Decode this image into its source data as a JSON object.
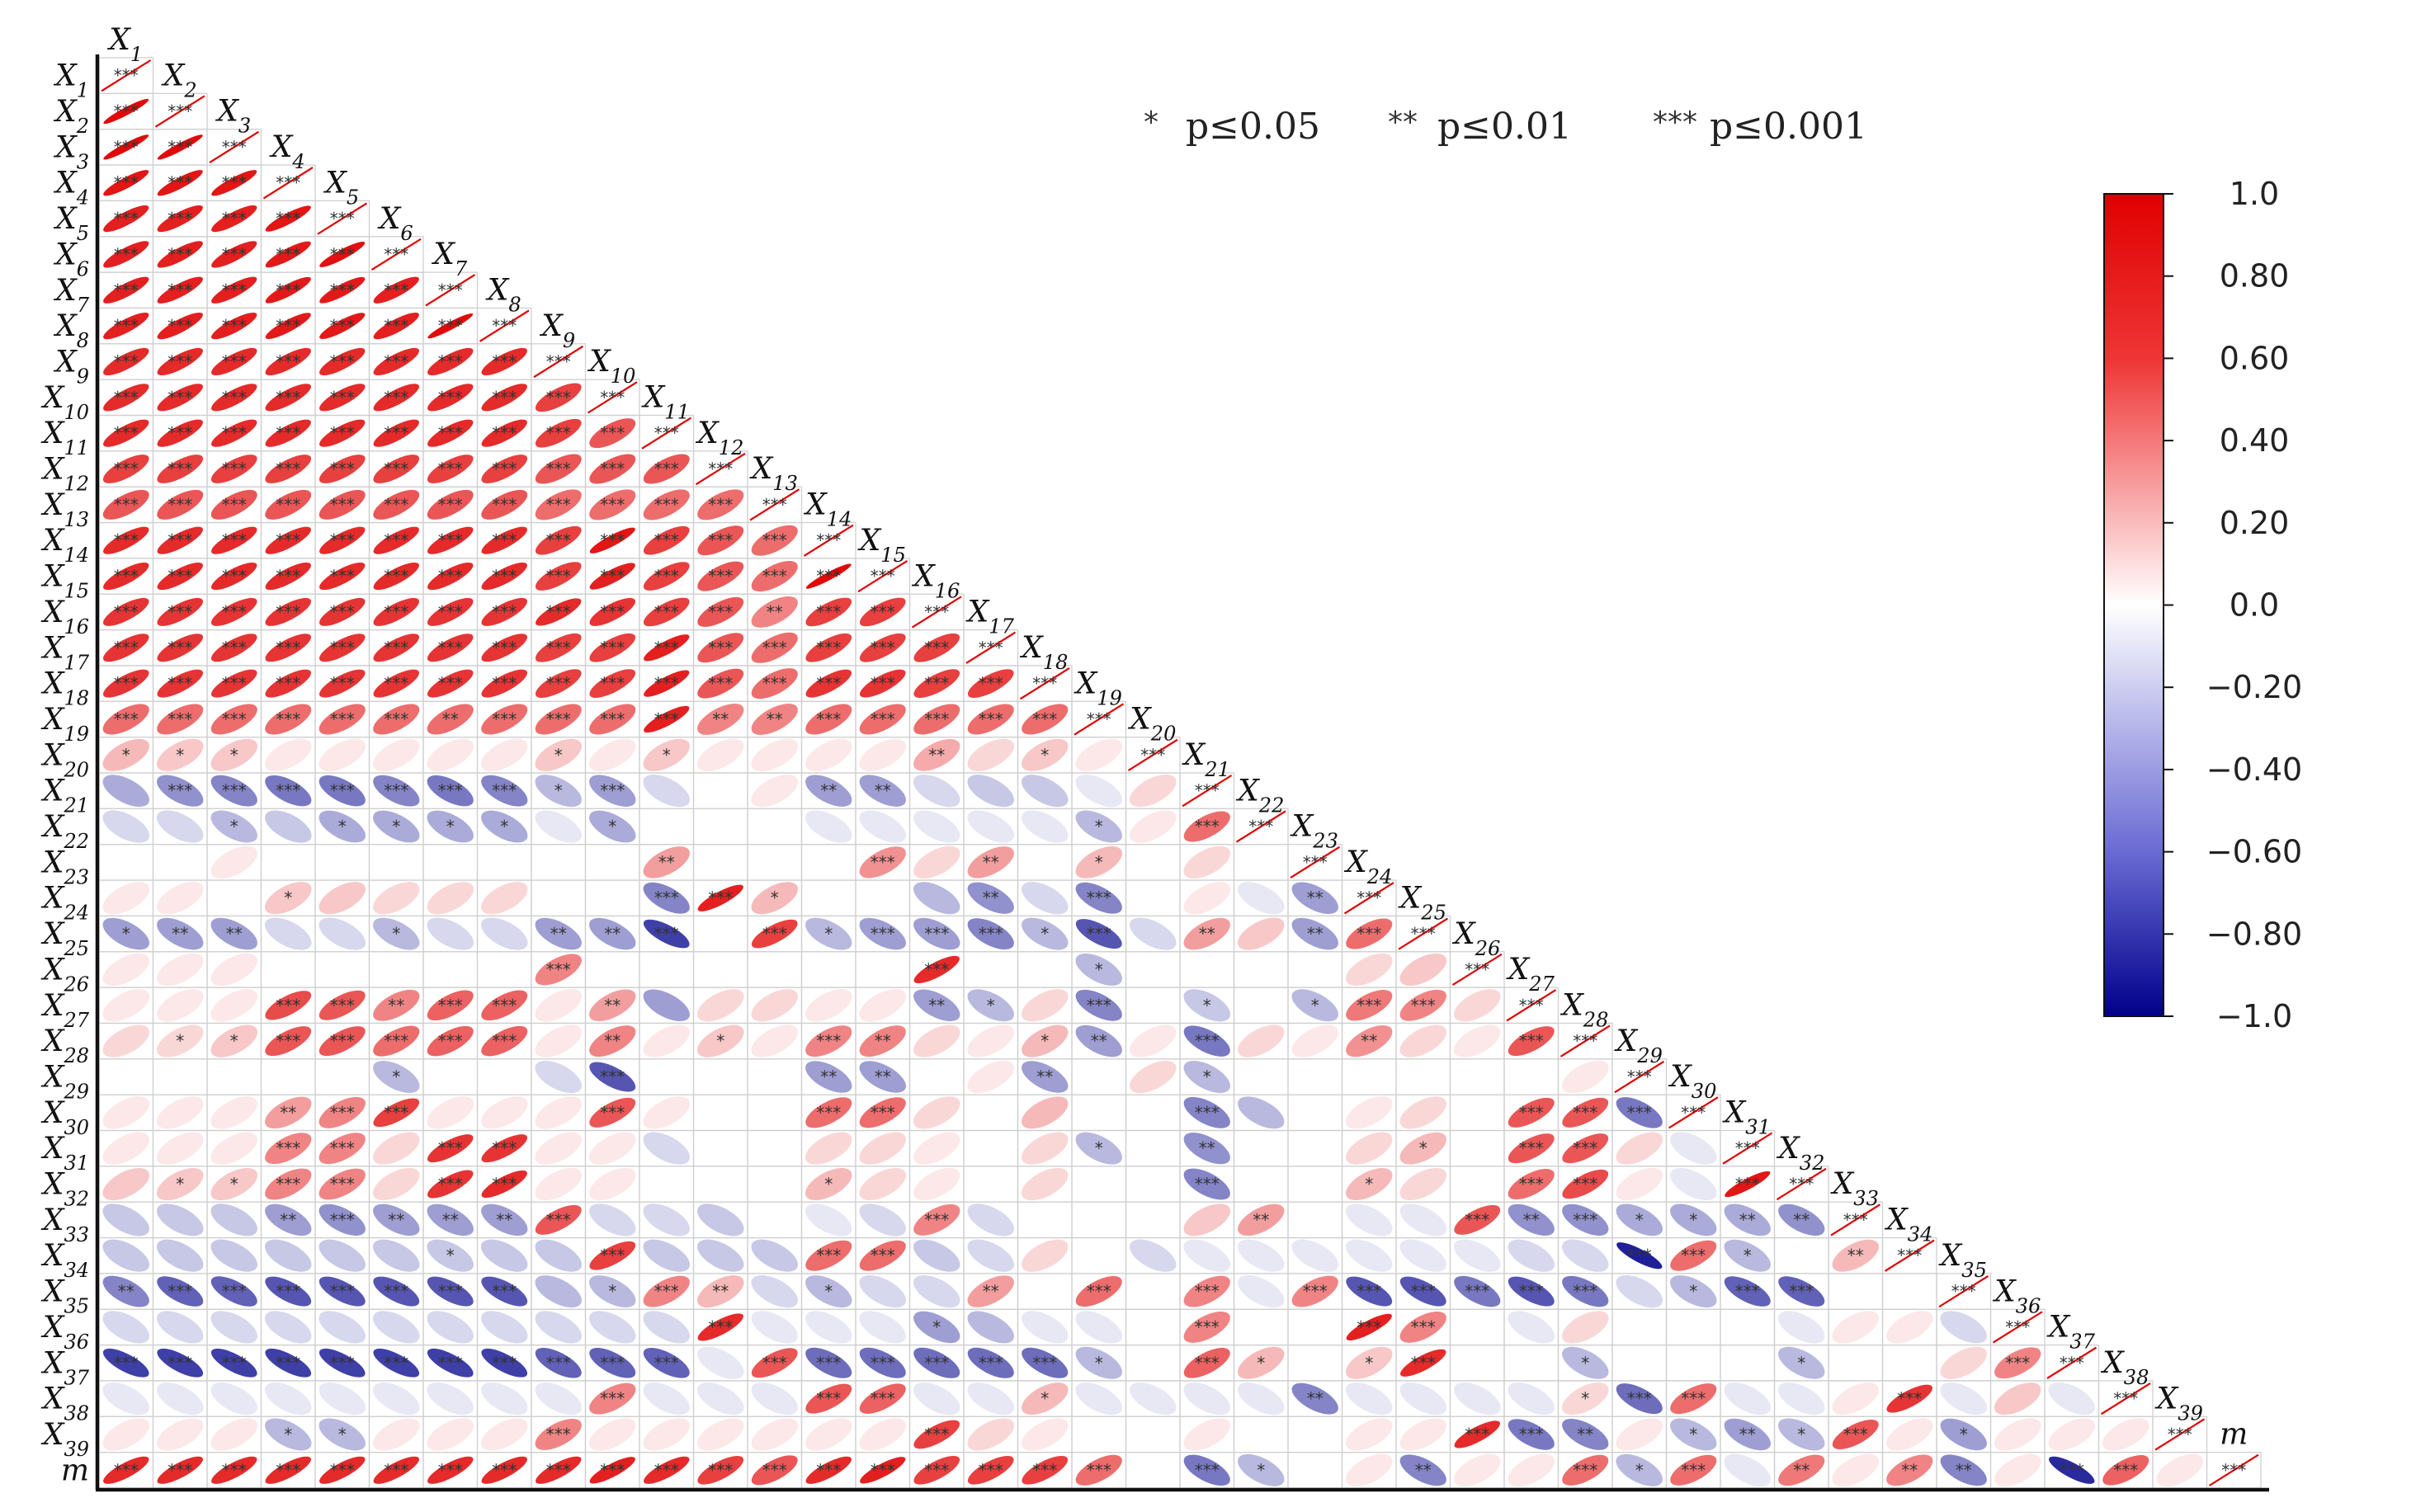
{
  "chart_data": {
    "type": "heatmap",
    "subtype": "lower-triangle correlation ellipse matrix",
    "variables": [
      "X1",
      "X2",
      "X3",
      "X4",
      "X5",
      "X6",
      "X7",
      "X8",
      "X9",
      "X10",
      "X11",
      "X12",
      "X13",
      "X14",
      "X15",
      "X16",
      "X17",
      "X18",
      "X19",
      "X20",
      "X21",
      "X22",
      "X23",
      "X24",
      "X25",
      "X26",
      "X27",
      "X28",
      "X29",
      "X30",
      "X31",
      "X32",
      "X33",
      "X34",
      "X35",
      "X36",
      "X37",
      "X38",
      "X39",
      "m"
    ],
    "significance_legend": [
      {
        "stars": "*",
        "text": "p≤0.05"
      },
      {
        "stars": "**",
        "text": "p≤0.01"
      },
      {
        "stars": "***",
        "text": "p≤0.001"
      }
    ],
    "colorbar": {
      "min": -1.0,
      "max": 1.0,
      "colors": {
        "negative": "#00008b",
        "zero": "#ffffff",
        "positive": "#e00000"
      },
      "ticks": [
        {
          "value": 1.0,
          "label": "1.0"
        },
        {
          "value": 0.8,
          "label": "0.80"
        },
        {
          "value": 0.6,
          "label": "0.60"
        },
        {
          "value": 0.4,
          "label": "0.40"
        },
        {
          "value": 0.2,
          "label": "0.20"
        },
        {
          "value": 0.0,
          "label": "0.0"
        },
        {
          "value": -0.2,
          "label": "−0.20"
        },
        {
          "value": -0.4,
          "label": "−0.40"
        },
        {
          "value": -0.6,
          "label": "−0.60"
        },
        {
          "value": -0.8,
          "label": "−0.80"
        },
        {
          "value": -1.0,
          "label": "−1.0"
        }
      ]
    },
    "significance_rows": [
      "***",
      "*** ***",
      "*** *** ***",
      "*** *** *** ***",
      "*** *** *** *** ***",
      "*** *** *** *** *** ***",
      "*** *** *** *** *** *** ***",
      "*** *** *** *** *** *** *** ***",
      "*** *** *** *** *** *** *** *** ***",
      "*** *** *** *** *** *** *** *** *** ***",
      "*** *** *** *** *** *** *** *** *** *** ***",
      "*** *** *** *** *** *** *** *** *** *** *** ***",
      "*** *** *** *** *** *** *** *** *** *** *** *** ***",
      "*** *** *** *** *** *** *** *** *** *** *** *** *** ***",
      "*** *** *** *** *** *** *** *** *** *** *** *** *** *** ***",
      "*** *** *** *** *** *** *** *** *** *** *** *** ** *** *** ***",
      "*** *** *** *** *** *** *** *** *** *** *** *** *** *** *** *** ***",
      "*** *** *** *** *** *** *** *** *** *** *** *** *** *** *** *** *** ***",
      "*** *** *** *** *** *** ** *** *** *** *** ** ** *** *** *** *** *** ***",
      "* * * . . . . . * . * . . . . ** . * . ***",
      ". *** *** *** *** *** *** *** * *** . . . ** ** . . . . . ***",
      ". . * . * * * * . * . . . . . . . . * . *** ***",
      ". . . . . . . . . . ** . . . *** . ** . * . . . ***",
      ". . . * . . . . . . *** *** * . . . ** . *** . . . ** ***",
      "* ** ** . . * . . ** ** *** . *** * *** *** *** * *** . ** . ** *** ***",
      ". . . . . . . . *** . . . . . . *** . . * . . . . . . ***",
      ". . . *** *** ** *** *** . ** . . . . . ** * . *** . * . * *** *** . ***",
      ". * * *** *** *** *** *** . ** . * . *** ** . . * ** . *** . . ** . . *** ***",
      ". . . . . * . . . *** . . . ** ** . . ** . . * . . . . . . . ***",
      ". . . ** *** *** . . . *** . . . *** *** . . . . . *** . . . . . *** *** *** ***",
      ". . . *** *** . *** *** . . . . . . . . . . * . ** . . . * . *** *** . . ***",
      ". * * *** *** . *** *** . . . . . * . . . . . . *** . . * . . *** *** . . *** ***",
      ". . . ** *** ** ** ** *** . . . . . . *** . . . . . ** . . . *** ** *** * * ** ** ***",
      ". . . . . . * . . *** . . . *** *** . . . . . . . . . . . . . *** *** * . ** ***",
      "** *** *** *** *** *** *** *** . * *** ** . * . . ** . *** . *** . *** *** *** *** *** *** . * *** *** . . ***",
      ". . . . . . . . . . . *** . . . * . . . . *** . . *** *** . . . . . . . . . . ***",
      "*** *** *** *** *** *** *** *** *** *** *** . *** *** *** *** *** *** * . *** * . * *** . . * . . . * . . . *** ***",
      ". . . . . . . . . *** . . . *** *** . . * . . . . ** . . . . * *** *** . . . *** . . . ***",
      ". . . * * . . . *** . . . . . . *** . . . . . . . . . *** *** ** . * ** * *** . * . . . ***",
      "*** *** *** *** *** *** *** *** *** *** *** *** *** *** *** *** *** *** *** . *** * . . ** . . *** * *** . ** . ** ** . *** *** . ***"
    ],
    "correlation_rows": [
      "1",
      ".95 1",
      ".95 .95 1",
      ".9 .9 .9 1",
      ".85 .85 .85 .9 1",
      ".85 .85 .85 .88 .92 1",
      ".85 .85 .85 .88 .88 .85 1",
      ".85 .85 .85 .88 .88 .85 .95 1",
      ".8 .8 .8 .8 .8 .8 .8 .8 1",
      ".8 .8 .8 .8 .8 .8 .8 .8 .7 1",
      ".8 .8 .8 .8 .8 .8 .8 .8 .7 .6 1",
      ".7 .7 .7 .7 .7 .7 .7 .7 .6 .6 .6 1",
      ".6 .6 .6 .6 .6 .6 .6 .6 .5 .5 .5 .5 1",
      ".8 .8 .8 .8 .8 .8 .8 .8 .7 .9 .7 .6 .5 1",
      ".8 .8 .8 .8 .8 .8 .8 .8 .7 .85 .7 .6 .5 .95 1",
      ".75 .75 .75 .75 .75 .75 .75 .75 .8 .75 .7 .6 .4 .7 .7 1",
      ".75 .75 .75 .75 .75 .75 .75 .75 .7 .7 .85 .6 .5 .7 .7 .7 1",
      ".75 .75 .75 .75 .75 .75 .75 .75 .7 .7 .85 .6 .5 .75 .75 .7 .7 1",
      ".5 .5 .5 .5 .5 .5 .5 .5 .5 .5 .85 .4 .4 .5 .5 .5 .5 .5 1",
      ".2 .15 .15 .05 .05 .05 .05 .05 .15 .05 .15 .05 .05 .05 .05 .25 .1 .15 .05 1",
      "-.25 -.35 -.4 -.45 -.45 -.4 -.45 -.4 -.2 -.3 -.1 0 .05 -.3 -.3 -.1 -.15 -.15 -.05 .1 1",
      "-.1 -.1 -.2 -.15 -.25 -.25 -.25 -.25 -.05 -.25 0 0 0 -.05 -.05 -.05 -.05 -.05 -.2 .05 .5 1",
      "0 0 .05 0 0 0 0 0 0 0 .3 0 0 0 .35 .1 .3 0 .2 0 .1 0 1",
      ".05 .05 0 .15 .15 .1 .1 .1 0 0 -.4 .85 .2 0 0 -.2 -.35 -.1 -.4 0 .05 -.05 -.3 1",
      "-.3 -.3 -.3 -.1 -.1 -.2 -.1 -.1 -.3 -.3 -.7 0 .7 -.2 -.3 -.3 -.4 -.2 -.6 -.1 .3 .15 -.3 .5 1",
      ".05 .05 .05 0 0 0 0 0 .4 0 0 0 0 0 0 .8 0 0 -.2 0 0 0 0 .1 .15 1",
      ".05 .05 .05 .65 .6 .4 .55 .55 .05 .3 -.3 .1 .1 .05 .05 -.3 -.2 .1 -.4 0 -.15 0 -.2 .45 .4 .1 1",
      ".1 .1 .15 .6 .6 .5 .55 .55 .05 .4 .05 .15 .05 .4 .4 .1 .05 .2 -.3 .05 -.45 .1 .05 .35 .1 .05 .6 1",
      "0 0 0 0 0 -.2 0 0 -.1 -.6 0 0 0 -.3 -.3 0 .05 -.3 0 .1 -.2 0 0 0 0 0 0 .05 1",
      ".05 .05 .05 .3 .4 .7 .05 .05 .05 .6 .05 0 0 .5 .5 .1 0 .2 0 0 -.4 -.2 0 .05 .1 0 .6 .6 -.45 1",
      ".05 .05 .05 .4 .4 .1 .75 .75 .05 .05 -.1 0 0 .1 .1 .05 0 .1 -.2 0 -.35 0 0 .1 .2 0 .6 .6 .1 -.05 1",
      ".15 .15 .15 .4 .4 .1 .75 .8 .05 .05 0 0 0 .2 .1 .05 0 .1 0 0 -.4 0 0 .2 .1 0 .5 .65 .05 -.05 .9 1",
      "-.15 -.15 -.15 -.3 -.35 -.3 -.3 -.3 .6 -.1 -.1 -.15 0 -.05 -.1 .4 -.1 0 0 0 .15 .3 0 -.05 -.05 .6 -.35 -.35 -.25 -.25 -.25 -.35 1",
      "-.15 -.15 -.15 -.15 -.15 -.15 -.15 -.15 -.15 .7 -.15 -.15 -.15 .5 .5 -.15 -.1 .1 0 -.1 -.05 -.05 -.05 -.05 -.05 -.05 -.1 -.1 -.85 .5 -.2 0 .2 1",
      "-.4 -.55 -.55 -.6 -.6 -.6 -.6 -.6 -.2 -.2 .4 .2 -.1 -.2 -.1 -.1 .3 0 .5 0 .4 -.05 .4 -.6 -.6 -.45 -.6 -.45 -.1 -.2 -.55 -.55 0 0 1",
      "-.1 -.1 -.1 -.1 -.1 -.1 -.1 -.1 -.1 -.1 -.1 .8 -.05 -.05 -.05 -.3 -.2 -.05 -.05 0 .4 0 0 .85 .4 0 -.05 .1 0 0 0 -.05 .05 .05 -.1 1",
      "-.7 -.7 -.7 -.7 -.7 -.7 -.7 -.7 -.55 -.55 -.55 -.05 .6 -.5 -.5 -.5 -.5 -.5 -.2 0 .55 .2 0 .15 .8 0 0 -.2 0 0 0 -.2 0 0 .1 .4 1",
      "-.05 -.05 -.05 -.05 -.05 -.05 -.05 -.05 -.05 .4 -.05 -.05 -.05 .6 .55 -.05 -.05 .2 -.05 -.05 -.05 -.05 -.4 -.05 -.05 -.05 -.05 .1 -.5 .5 -.05 -.05 .05 .75 -.05 .15 -.05 1",
      ".05 .05 .05 -.2 -.2 .05 .05 .05 .4 .05 .05 .05 .05 .05 .05 .7 .1 .05 0 0 .05 0 0 .05 .05 .8 -.45 -.4 .05 -.2 -.3 -.2 .6 .05 -.3 .05 .05 .05 1",
      ".8 .8 .8 .8 .8 .8 .8 .8 .8 .85 .8 .7 .6 .8 .85 .7 .7 .7 .5 0 -.45 -.2 0 .05 -.4 .05 .05 .5 -.2 .5 -.05 .45 .05 .4 -.4 .05 -.8 .55 .05 1"
    ]
  }
}
